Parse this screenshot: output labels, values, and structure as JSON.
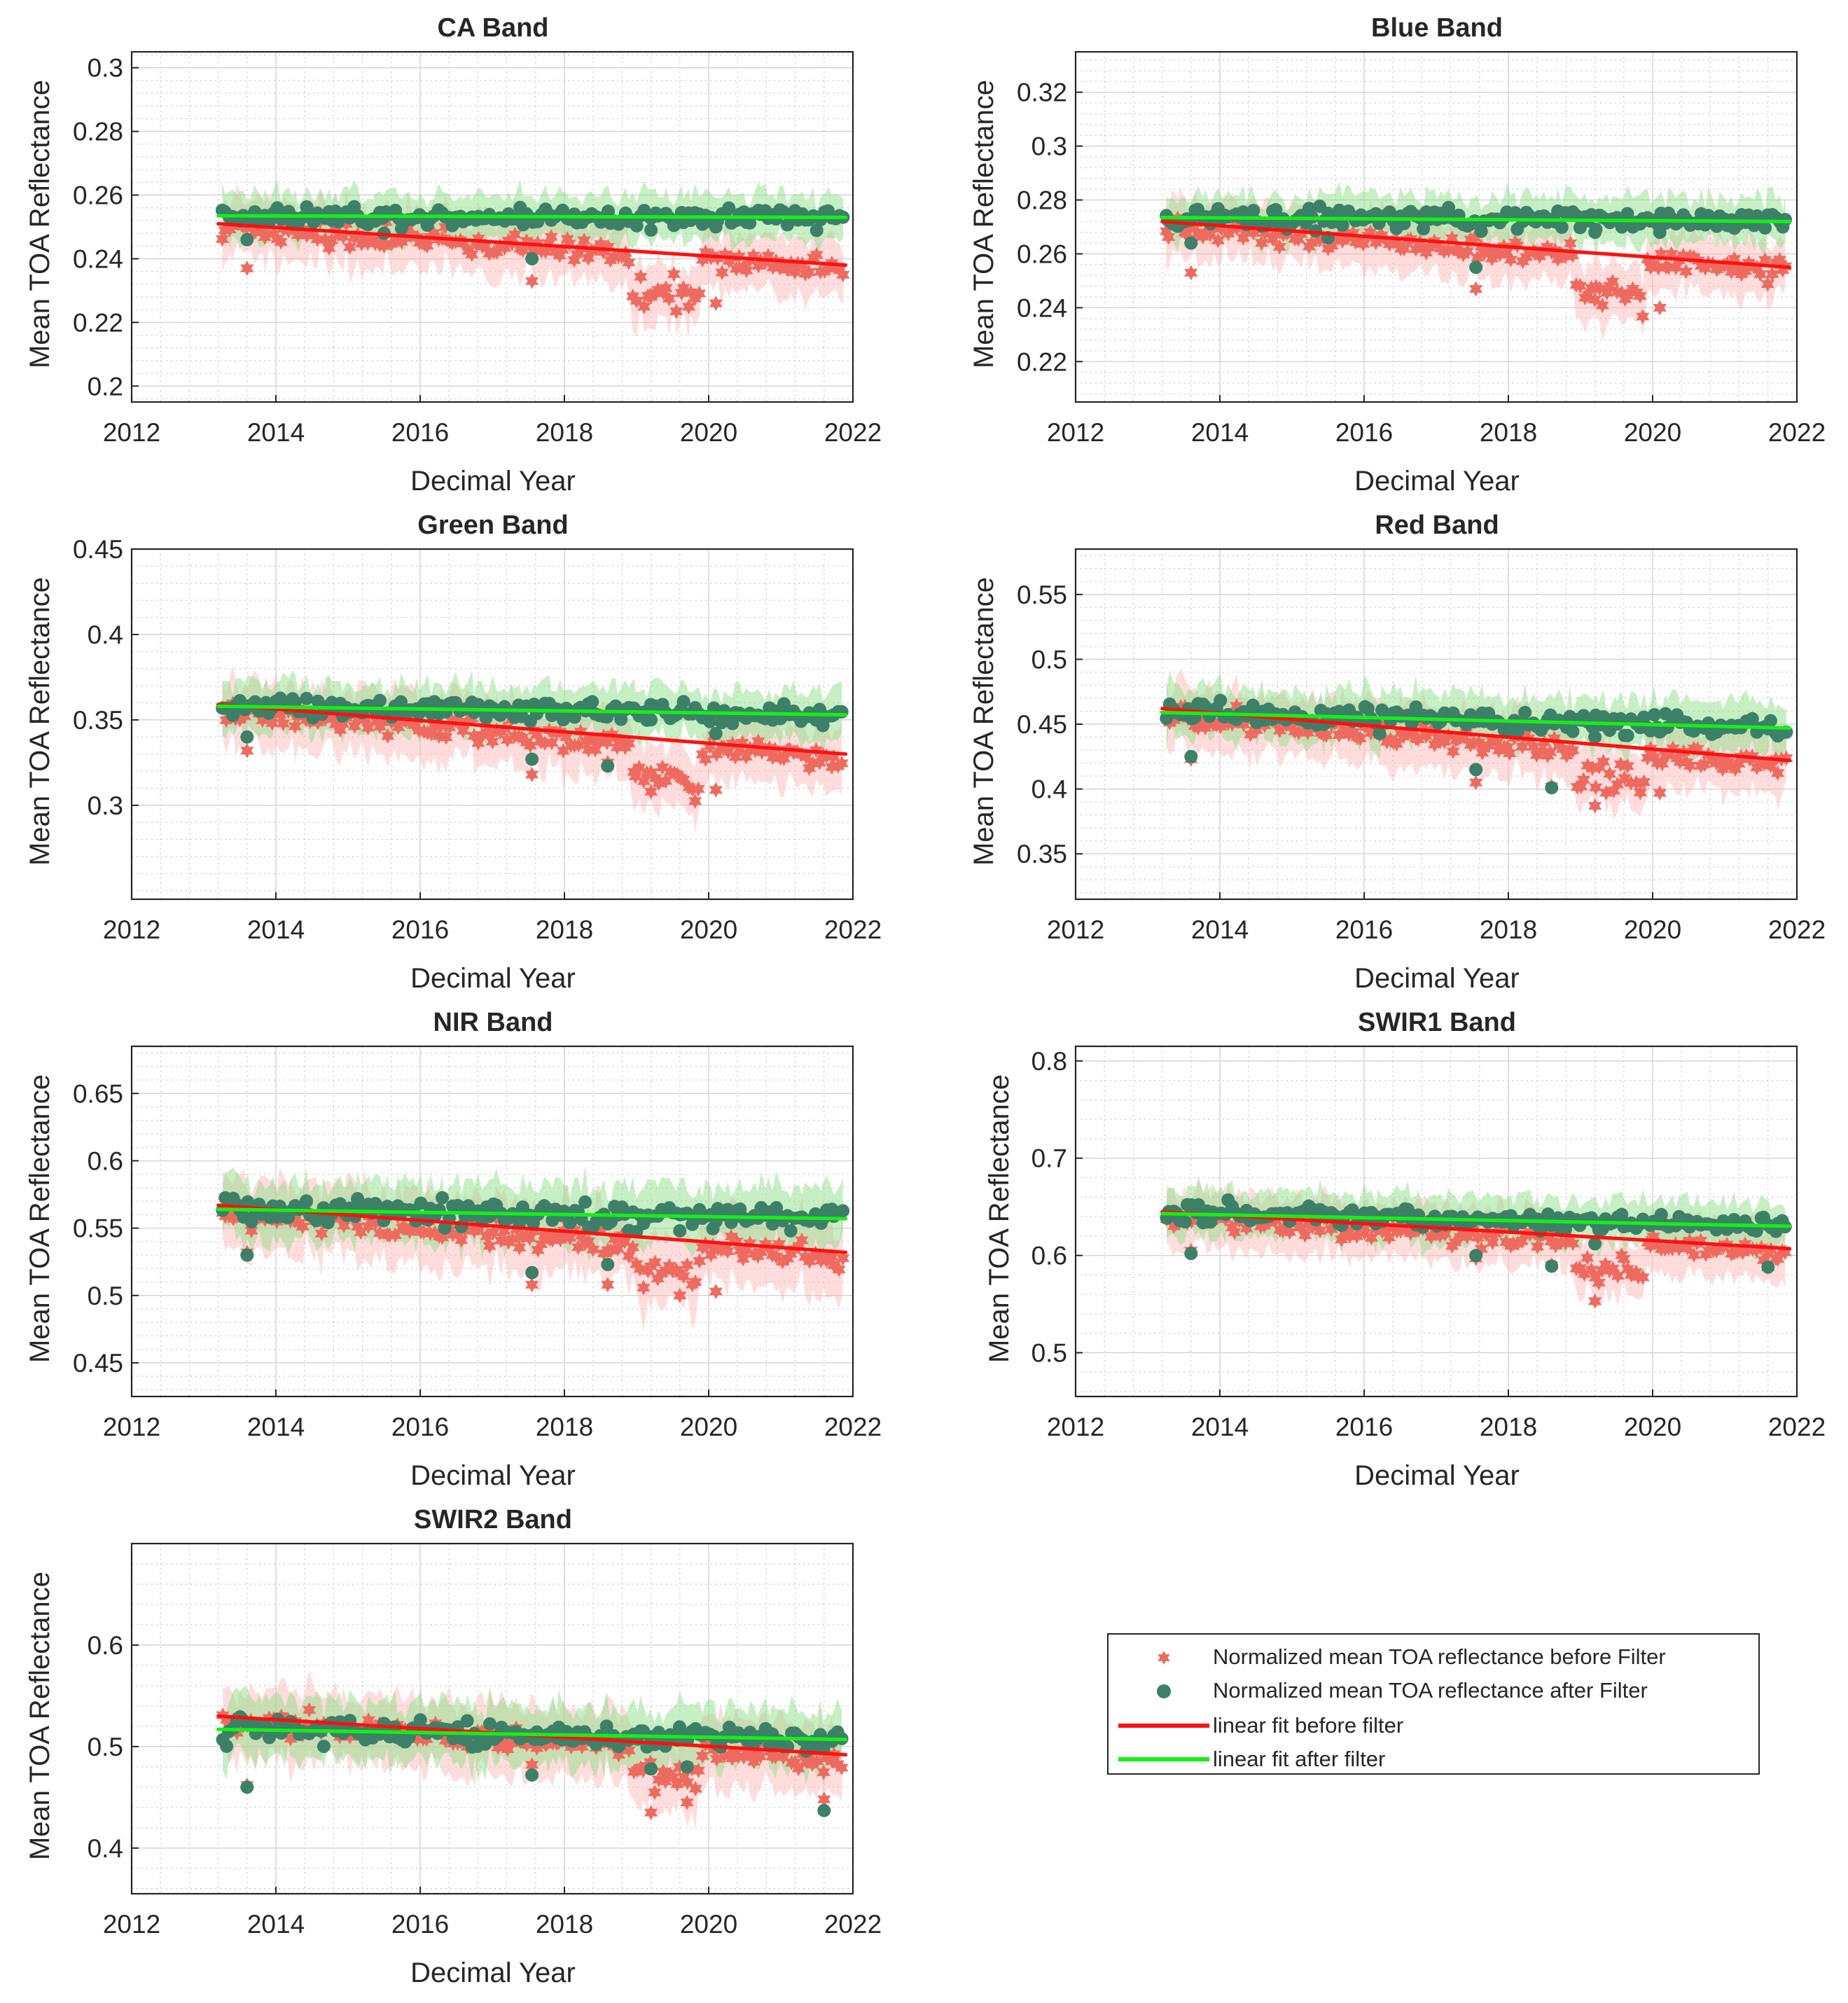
{
  "chart_data": [
    {
      "type": "scatter",
      "title": "CA Band",
      "xlabel": "Decimal Year",
      "ylabel": "Mean TOA Reflectance",
      "xlim": [
        2012,
        2022
      ],
      "ylim": [
        0.195,
        0.305
      ],
      "xticks": [
        2012,
        2014,
        2016,
        2018,
        2020,
        2022
      ],
      "xtick_labels": [
        "2012",
        "2014",
        "2016",
        "2018",
        "2020",
        "2022"
      ],
      "yticks": [
        0.2,
        0.22,
        0.24,
        0.26,
        0.28,
        0.3
      ],
      "ytick_labels": [
        "0.2",
        "0.22",
        "0.24",
        "0.26",
        "0.28",
        "0.3"
      ],
      "grid": "major and minor",
      "series": [
        {
          "name": "linear fit before filter",
          "kind": "line",
          "x": [
            2013.2,
            2021.9
          ],
          "y": [
            0.251,
            0.238
          ]
        },
        {
          "name": "linear fit after filter",
          "kind": "line",
          "x": [
            2013.2,
            2021.9
          ],
          "y": [
            0.2535,
            0.253
          ]
        }
      ],
      "outliers": {
        "x": [
          2013.6,
          2015.5,
          2017.55,
          2019.2,
          2020.1
        ],
        "y": [
          0.237,
          0.244,
          0.233,
          0.228,
          0.226
        ],
        "after_y": [
          0.246,
          0.248,
          0.24,
          0.249,
          0.25
        ]
      },
      "sample": {
        "before": {
          "base": 0.25,
          "slope": -0.0015,
          "noise": 0.0035,
          "dip": 0.016
        },
        "after": {
          "base": 0.2535,
          "slope": -5e-05,
          "noise": 0.003
        }
      }
    },
    {
      "type": "scatter",
      "title": "Blue Band",
      "xlabel": "Decimal Year",
      "ylabel": "Mean TOA Reflectance",
      "xlim": [
        2012,
        2022
      ],
      "ylim": [
        0.205,
        0.335
      ],
      "xticks": [
        2012,
        2014,
        2016,
        2018,
        2020,
        2022
      ],
      "xtick_labels": [
        "2012",
        "2014",
        "2016",
        "2018",
        "2020",
        "2022"
      ],
      "yticks": [
        0.22,
        0.24,
        0.26,
        0.28,
        0.3,
        0.32
      ],
      "ytick_labels": [
        "0.22",
        "0.24",
        "0.26",
        "0.28",
        "0.3",
        "0.32"
      ],
      "grid": "major and minor",
      "series": [
        {
          "name": "linear fit before filter",
          "kind": "line",
          "x": [
            2013.2,
            2021.9
          ],
          "y": [
            0.272,
            0.255
          ]
        },
        {
          "name": "linear fit after filter",
          "kind": "line",
          "x": [
            2013.2,
            2021.9
          ],
          "y": [
            0.2735,
            0.272
          ]
        }
      ],
      "outliers": {
        "x": [
          2013.6,
          2015.5,
          2017.55,
          2019.2,
          2020.1
        ],
        "y": [
          0.253,
          0.262,
          0.247,
          0.243,
          0.24
        ],
        "after_y": [
          0.264,
          0.266,
          0.255,
          0.268,
          0.268
        ]
      },
      "sample": {
        "before": {
          "base": 0.27,
          "slope": -0.0019,
          "noise": 0.004,
          "dip": 0.018
        },
        "after": {
          "base": 0.2735,
          "slope": -0.00015,
          "noise": 0.0035
        }
      }
    },
    {
      "type": "scatter",
      "title": "Green Band",
      "xlabel": "Decimal Year",
      "ylabel": "Mean TOA Reflectance",
      "xlim": [
        2012,
        2022
      ],
      "ylim": [
        0.245,
        0.45
      ],
      "xticks": [
        2012,
        2014,
        2016,
        2018,
        2020,
        2022
      ],
      "xtick_labels": [
        "2012",
        "2014",
        "2016",
        "2018",
        "2020",
        "2022"
      ],
      "yticks": [
        0.3,
        0.35,
        0.4,
        0.45
      ],
      "ytick_labels": [
        "0.3",
        "0.35",
        "0.4",
        "0.45"
      ],
      "grid": "major and minor",
      "series": [
        {
          "name": "linear fit before filter",
          "kind": "line",
          "x": [
            2013.2,
            2021.9
          ],
          "y": [
            0.359,
            0.33
          ]
        },
        {
          "name": "linear fit after filter",
          "kind": "line",
          "x": [
            2013.2,
            2021.9
          ],
          "y": [
            0.358,
            0.353
          ]
        }
      ],
      "outliers": {
        "x": [
          2013.6,
          2017.55,
          2018.6,
          2019.2,
          2020.1
        ],
        "y": [
          0.332,
          0.318,
          0.325,
          0.308,
          0.309
        ],
        "after_y": [
          0.34,
          0.327,
          0.323,
          0.35,
          0.342
        ]
      },
      "sample": {
        "before": {
          "base": 0.355,
          "slope": -0.0033,
          "noise": 0.007,
          "dip": 0.025
        },
        "after": {
          "base": 0.358,
          "slope": -0.0006,
          "noise": 0.006
        }
      }
    },
    {
      "type": "scatter",
      "title": "Red Band",
      "xlabel": "Decimal Year",
      "ylabel": "Mean TOA Reflectance",
      "xlim": [
        2012,
        2022
      ],
      "ylim": [
        0.315,
        0.585
      ],
      "xticks": [
        2012,
        2014,
        2016,
        2018,
        2020,
        2022
      ],
      "xtick_labels": [
        "2012",
        "2014",
        "2016",
        "2018",
        "2020",
        "2022"
      ],
      "yticks": [
        0.35,
        0.4,
        0.45,
        0.5,
        0.55
      ],
      "ytick_labels": [
        "0.35",
        "0.4",
        "0.45",
        "0.5",
        "0.55"
      ],
      "grid": "major and minor",
      "series": [
        {
          "name": "linear fit before filter",
          "kind": "line",
          "x": [
            2013.2,
            2021.9
          ],
          "y": [
            0.462,
            0.422
          ]
        },
        {
          "name": "linear fit after filter",
          "kind": "line",
          "x": [
            2013.2,
            2021.9
          ],
          "y": [
            0.459,
            0.447
          ]
        }
      ],
      "outliers": {
        "x": [
          2013.6,
          2017.55,
          2018.6,
          2019.2,
          2020.1
        ],
        "y": [
          0.423,
          0.405,
          0.402,
          0.387,
          0.397
        ],
        "after_y": [
          0.425,
          0.415,
          0.401,
          0.44,
          0.444
        ]
      },
      "sample": {
        "before": {
          "base": 0.456,
          "slope": -0.0045,
          "noise": 0.009,
          "dip": 0.03
        },
        "after": {
          "base": 0.459,
          "slope": -0.0014,
          "noise": 0.008
        }
      }
    },
    {
      "type": "scatter",
      "title": "NIR Band",
      "xlabel": "Decimal Year",
      "ylabel": "Mean TOA Reflectance",
      "xlim": [
        2012,
        2022
      ],
      "ylim": [
        0.425,
        0.685
      ],
      "xticks": [
        2012,
        2014,
        2016,
        2018,
        2020,
        2022
      ],
      "xtick_labels": [
        "2012",
        "2014",
        "2016",
        "2018",
        "2020",
        "2022"
      ],
      "yticks": [
        0.45,
        0.5,
        0.55,
        0.6,
        0.65
      ],
      "ytick_labels": [
        "0.45",
        "0.5",
        "0.55",
        "0.6",
        "0.65"
      ],
      "grid": "major and minor",
      "series": [
        {
          "name": "linear fit before filter",
          "kind": "line",
          "x": [
            2013.2,
            2021.9
          ],
          "y": [
            0.567,
            0.532
          ]
        },
        {
          "name": "linear fit after filter",
          "kind": "line",
          "x": [
            2013.2,
            2021.9
          ],
          "y": [
            0.564,
            0.557
          ]
        }
      ],
      "outliers": {
        "x": [
          2013.6,
          2017.55,
          2018.6,
          2019.6,
          2020.1
        ],
        "y": [
          0.532,
          0.508,
          0.508,
          0.5,
          0.503
        ],
        "after_y": [
          0.53,
          0.517,
          0.523,
          0.548,
          0.555
        ]
      },
      "sample": {
        "before": {
          "base": 0.562,
          "slope": -0.004,
          "noise": 0.01,
          "dip": 0.025
        },
        "after": {
          "base": 0.564,
          "slope": -0.0008,
          "noise": 0.009
        }
      }
    },
    {
      "type": "scatter",
      "title": "SWIR1 Band",
      "xlabel": "Decimal Year",
      "ylabel": "Mean TOA Reflectance",
      "xlim": [
        2012,
        2022
      ],
      "ylim": [
        0.455,
        0.815
      ],
      "xticks": [
        2012,
        2014,
        2016,
        2018,
        2020,
        2022
      ],
      "xtick_labels": [
        "2012",
        "2014",
        "2016",
        "2018",
        "2020",
        "2022"
      ],
      "yticks": [
        0.5,
        0.6,
        0.7,
        0.8
      ],
      "ytick_labels": [
        "0.5",
        "0.6",
        "0.7",
        "0.8"
      ],
      "grid": "major and minor",
      "series": [
        {
          "name": "linear fit before filter",
          "kind": "line",
          "x": [
            2013.2,
            2021.9
          ],
          "y": [
            0.645,
            0.607
          ]
        },
        {
          "name": "linear fit after filter",
          "kind": "line",
          "x": [
            2013.2,
            2021.9
          ],
          "y": [
            0.643,
            0.63
          ]
        }
      ],
      "outliers": {
        "x": [
          2013.6,
          2017.55,
          2018.6,
          2019.2,
          2021.6
        ],
        "y": [
          0.605,
          0.597,
          0.59,
          0.553,
          0.588
        ],
        "after_y": [
          0.602,
          0.6,
          0.589,
          0.612,
          0.588
        ]
      },
      "sample": {
        "before": {
          "base": 0.64,
          "slope": -0.0045,
          "noise": 0.011,
          "dip": 0.035
        },
        "after": {
          "base": 0.643,
          "slope": -0.0015,
          "noise": 0.01
        }
      }
    },
    {
      "type": "scatter",
      "title": "SWIR2 Band",
      "xlabel": "Decimal Year",
      "ylabel": "Mean TOA Reflectance",
      "xlim": [
        2012,
        2022
      ],
      "ylim": [
        0.355,
        0.7
      ],
      "xticks": [
        2012,
        2014,
        2016,
        2018,
        2020,
        2022
      ],
      "xtick_labels": [
        "2012",
        "2014",
        "2016",
        "2018",
        "2020",
        "2022"
      ],
      "yticks": [
        0.4,
        0.5,
        0.6
      ],
      "ytick_labels": [
        "0.4",
        "0.5",
        "0.6"
      ],
      "grid": "major and minor",
      "series": [
        {
          "name": "linear fit before filter",
          "kind": "line",
          "x": [
            2013.2,
            2021.9
          ],
          "y": [
            0.53,
            0.492
          ]
        },
        {
          "name": "linear fit after filter",
          "kind": "line",
          "x": [
            2013.2,
            2021.9
          ],
          "y": [
            0.517,
            0.507
          ]
        }
      ],
      "outliers": {
        "x": [
          2013.6,
          2017.55,
          2019.2,
          2019.7,
          2021.6
        ],
        "y": [
          0.462,
          0.482,
          0.435,
          0.445,
          0.448
        ],
        "after_y": [
          0.46,
          0.472,
          0.478,
          0.48,
          0.437
        ]
      },
      "sample": {
        "before": {
          "base": 0.525,
          "slope": -0.0045,
          "noise": 0.013,
          "dip": 0.03
        },
        "after": {
          "base": 0.517,
          "slope": -0.0012,
          "noise": 0.012
        }
      }
    }
  ],
  "legend": {
    "before_marker": "Normalized mean TOA reflectance before Filter",
    "after_marker": "Normalized mean TOA reflectance after Filter",
    "fit_before": "linear fit before filter",
    "fit_after": "linear fit after filter"
  },
  "colors": {
    "before_marker": "#ef6a5e",
    "after_marker": "#3c8068",
    "fit_before": "#ff1010",
    "fit_after": "#14f014",
    "band_before": "#ffb4b4",
    "band_after": "#8fe08a"
  }
}
